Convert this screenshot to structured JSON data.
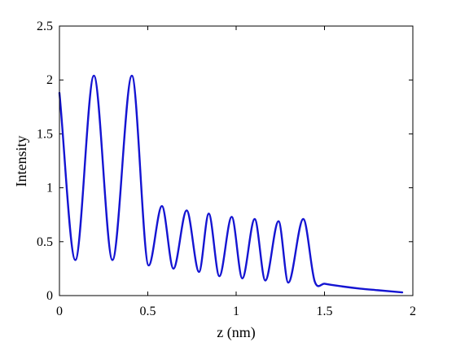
{
  "chart_data": {
    "type": "line",
    "title": "",
    "xlabel": "z (nm)",
    "ylabel": "Intensity",
    "xlim": [
      0,
      2
    ],
    "ylim": [
      0,
      2.5
    ],
    "xticks": [
      0,
      0.5,
      1,
      1.5,
      2
    ],
    "xtick_labels": [
      "0",
      "0.5",
      "1",
      "1.5",
      "2"
    ],
    "yticks": [
      0,
      0.5,
      1,
      1.5,
      2,
      2.5
    ],
    "ytick_labels": [
      "0",
      "0.5",
      "1",
      "1.5",
      "2",
      "2.5"
    ],
    "grid": false,
    "line_color": "#1414d2",
    "series": [
      {
        "x": [
          0,
          0.09,
          0.195,
          0.3,
          0.41,
          0.505,
          0.58,
          0.645,
          0.72,
          0.79,
          0.845,
          0.905,
          0.975,
          1.035,
          1.105,
          1.165,
          1.24,
          1.295,
          1.38,
          1.445,
          1.5,
          1.6,
          1.7,
          1.8,
          1.94
        ],
        "y": [
          1.88,
          0.33,
          2.04,
          0.33,
          2.04,
          0.28,
          0.83,
          0.25,
          0.79,
          0.22,
          0.76,
          0.18,
          0.73,
          0.16,
          0.71,
          0.14,
          0.69,
          0.12,
          0.71,
          0.13,
          0.11,
          0.085,
          0.065,
          0.05,
          0.03
        ]
      }
    ]
  }
}
